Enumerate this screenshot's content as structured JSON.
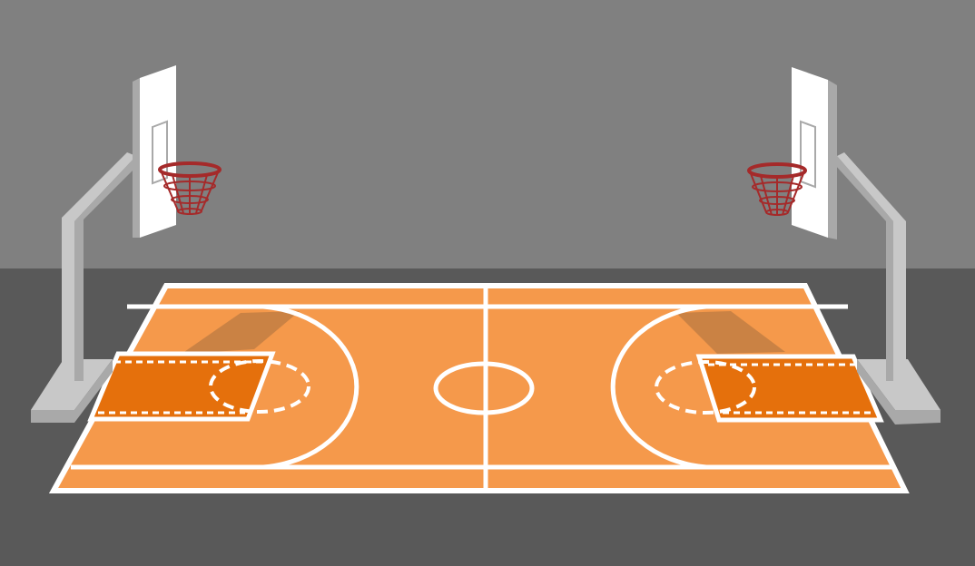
{
  "colors": {
    "wall": "#808080",
    "floor": "#595959",
    "court": "#f5994b",
    "paint": "#e5700c",
    "lines": "#ffffff",
    "hoop_rim": "#a52a2a",
    "backboard": "#ffffff",
    "pole": "#c8c8c8",
    "pole_shadow": "#a9a9a9",
    "shadow": "#7a5a3a"
  },
  "icons": {
    "scene": "basketball-court-illustration",
    "left_hoop": "basketball-hoop-icon",
    "right_hoop": "basketball-hoop-icon"
  }
}
